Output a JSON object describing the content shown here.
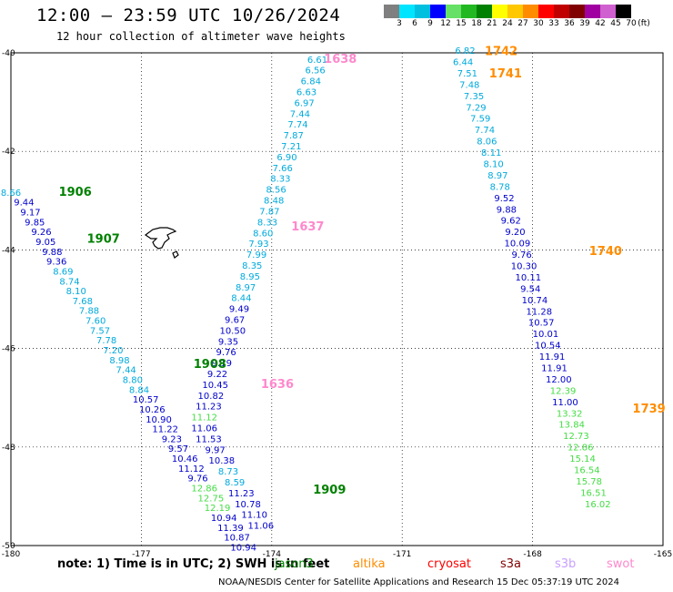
{
  "title": "12:00 – 23:59 UTC 10/26/2024",
  "subtitle": "12 hour collection of altimeter wave heights",
  "legend": {
    "unit": "(ft)",
    "bins": [
      {
        "label": "3",
        "color": "#7f7f7f"
      },
      {
        "label": "6",
        "color": "#00e5ff"
      },
      {
        "label": "9",
        "color": "#00bfdf"
      },
      {
        "label": "12",
        "color": "#0000ff"
      },
      {
        "label": "15",
        "color": "#66e066"
      },
      {
        "label": "18",
        "color": "#22b822"
      },
      {
        "label": "21",
        "color": "#008000"
      },
      {
        "label": "24",
        "color": "#ffff00"
      },
      {
        "label": "27",
        "color": "#ffc800"
      },
      {
        "label": "30",
        "color": "#ff8c00"
      },
      {
        "label": "33",
        "color": "#ff0000"
      },
      {
        "label": "36",
        "color": "#c00000"
      },
      {
        "label": "39",
        "color": "#800000"
      },
      {
        "label": "42",
        "color": "#a000a0"
      },
      {
        "label": "45",
        "color": "#d060d0"
      },
      {
        "label": "70",
        "color": "#000000"
      }
    ]
  },
  "map": {
    "lon_range": [
      -180,
      -165
    ],
    "lat_range": [
      -50,
      -40
    ],
    "x_ticks": [
      "-180",
      "-177",
      "-174",
      "-171",
      "-168",
      "-165"
    ],
    "y_ticks": [
      "-40",
      "-42",
      "-44",
      "-46",
      "-48",
      "-50"
    ],
    "grid": "dotted",
    "value_colors": {
      "c": "#00aadd",
      "b": "#0000cc",
      "g": "#44dd44",
      "t": "#00bbcc"
    },
    "time_labels": [
      {
        "text": "1906",
        "lon": -178.9,
        "lat": -42.9,
        "color": "#008000"
      },
      {
        "text": "1907",
        "lon": -178.25,
        "lat": -43.85,
        "color": "#008000"
      },
      {
        "text": "1908",
        "lon": -175.8,
        "lat": -46.4,
        "color": "#008000"
      },
      {
        "text": "1909",
        "lon": -173.05,
        "lat": -48.95,
        "color": "#008000"
      },
      {
        "text": "1638",
        "lon": -172.8,
        "lat": -40.2,
        "color": "#ff88cc"
      },
      {
        "text": "1637",
        "lon": -173.55,
        "lat": -43.6,
        "color": "#ff88cc"
      },
      {
        "text": "1636",
        "lon": -174.25,
        "lat": -46.8,
        "color": "#ff88cc"
      },
      {
        "text": "1742",
        "lon": -169.1,
        "lat": -40.05,
        "color": "#ff8c00"
      },
      {
        "text": "1741",
        "lon": -169.0,
        "lat": -40.5,
        "color": "#ff8c00"
      },
      {
        "text": "1740",
        "lon": -166.7,
        "lat": -44.1,
        "color": "#ff8c00"
      },
      {
        "text": "1739",
        "lon": -165.7,
        "lat": -47.3,
        "color": "#ff8c00"
      }
    ],
    "tracks": [
      {
        "name": "track-1900",
        "points": [
          [
            -180.0,
            -42.9,
            "8.66",
            "c"
          ],
          [
            -179.7,
            -43.1,
            "9.44",
            "b"
          ],
          [
            -179.55,
            -43.3,
            "9.17",
            "b"
          ],
          [
            -179.45,
            -43.5,
            "9.85",
            "b"
          ],
          [
            -179.3,
            -43.7,
            "9.26",
            "b"
          ],
          [
            -179.2,
            -43.9,
            "9.05",
            "b"
          ],
          [
            -179.05,
            -44.1,
            "9.88",
            "b"
          ],
          [
            -178.95,
            -44.3,
            "9.36",
            "b"
          ],
          [
            -178.8,
            -44.5,
            "8.69",
            "c"
          ],
          [
            -178.65,
            -44.7,
            "8.74",
            "c"
          ],
          [
            -178.5,
            -44.9,
            "8.10",
            "c"
          ],
          [
            -178.35,
            -45.1,
            "7.68",
            "c"
          ],
          [
            -178.2,
            -45.3,
            "7.88",
            "c"
          ],
          [
            -178.05,
            -45.5,
            "7.60",
            "c"
          ],
          [
            -177.95,
            -45.7,
            "7.57",
            "c"
          ],
          [
            -177.8,
            -45.9,
            "7.78",
            "c"
          ],
          [
            -177.65,
            -46.1,
            "7.20",
            "c"
          ],
          [
            -177.5,
            -46.3,
            "8.98",
            "c"
          ],
          [
            -177.35,
            -46.5,
            "7.44",
            "c"
          ],
          [
            -177.2,
            -46.7,
            "8.80",
            "c"
          ],
          [
            -177.05,
            -46.9,
            "8.84",
            "c"
          ],
          [
            -176.9,
            -47.1,
            "10.57",
            "b"
          ],
          [
            -176.75,
            -47.3,
            "10.26",
            "b"
          ],
          [
            -176.6,
            -47.5,
            "10.90",
            "b"
          ],
          [
            -176.45,
            -47.7,
            "11.22",
            "b"
          ],
          [
            -176.3,
            -47.9,
            "9.23",
            "b"
          ],
          [
            -176.15,
            -48.1,
            "9.57",
            "b"
          ],
          [
            -176.0,
            -48.3,
            "10.46",
            "b"
          ],
          [
            -175.85,
            -48.5,
            "11.12",
            "b"
          ],
          [
            -175.7,
            -48.7,
            "9.76",
            "b"
          ],
          [
            -175.55,
            -48.9,
            "12.86",
            "g"
          ],
          [
            -175.4,
            -49.1,
            "12.75",
            "g"
          ],
          [
            -175.25,
            -49.3,
            "12.19",
            "g"
          ],
          [
            -175.1,
            -49.5,
            "10.94",
            "b"
          ],
          [
            -174.95,
            -49.7,
            "11.39",
            "b"
          ],
          [
            -174.8,
            -49.9,
            "10.87",
            "b"
          ],
          [
            -174.65,
            -50.1,
            "10.94",
            "b"
          ]
        ]
      },
      {
        "name": "track-1630",
        "points": [
          [
            -172.95,
            -40.2,
            "6.61",
            "c"
          ],
          [
            -173.0,
            -40.42,
            "6.56",
            "c"
          ],
          [
            -173.1,
            -40.64,
            "6.84",
            "c"
          ],
          [
            -173.2,
            -40.86,
            "6.63",
            "c"
          ],
          [
            -173.25,
            -41.08,
            "6.97",
            "c"
          ],
          [
            -173.35,
            -41.3,
            "7.44",
            "c"
          ],
          [
            -173.4,
            -41.52,
            "7.74",
            "c"
          ],
          [
            -173.5,
            -41.74,
            "7.87",
            "c"
          ],
          [
            -173.55,
            -41.96,
            "7.21",
            "c"
          ],
          [
            -173.65,
            -42.18,
            "6.90",
            "c"
          ],
          [
            -173.75,
            -42.4,
            "7.66",
            "c"
          ],
          [
            -173.8,
            -42.62,
            "8.33",
            "c"
          ],
          [
            -173.9,
            -42.84,
            "8.56",
            "c"
          ],
          [
            -173.95,
            -43.06,
            "8.48",
            "c"
          ],
          [
            -174.05,
            -43.28,
            "7.87",
            "c"
          ],
          [
            -174.1,
            -43.5,
            "8.33",
            "c"
          ],
          [
            -174.2,
            -43.72,
            "8.60",
            "c"
          ],
          [
            -174.3,
            -43.94,
            "7.93",
            "c"
          ],
          [
            -174.35,
            -44.16,
            "7.99",
            "c"
          ],
          [
            -174.45,
            -44.38,
            "8.35",
            "c"
          ],
          [
            -174.5,
            -44.6,
            "8.95",
            "c"
          ],
          [
            -174.6,
            -44.82,
            "8.97",
            "c"
          ],
          [
            -174.7,
            -45.04,
            "8.44",
            "c"
          ],
          [
            -174.75,
            -45.26,
            "9.49",
            "b"
          ],
          [
            -174.85,
            -45.48,
            "9.67",
            "b"
          ],
          [
            -174.9,
            -45.7,
            "10.50",
            "b"
          ],
          [
            -175.0,
            -45.92,
            "9.35",
            "b"
          ],
          [
            -175.05,
            -46.14,
            "9.76",
            "b"
          ],
          [
            -175.15,
            -46.36,
            "9.19",
            "b"
          ],
          [
            -175.25,
            -46.58,
            "9.22",
            "b"
          ],
          [
            -175.3,
            -46.8,
            "10.45",
            "b"
          ],
          [
            -175.4,
            -47.02,
            "10.82",
            "b"
          ],
          [
            -175.45,
            -47.24,
            "11.23",
            "b"
          ],
          [
            -175.55,
            -47.46,
            "11.12",
            "g"
          ],
          [
            -175.55,
            -47.68,
            "11.06",
            "b"
          ],
          [
            -175.45,
            -47.9,
            "11.53",
            "b"
          ],
          [
            -175.3,
            -48.12,
            "9.97",
            "b"
          ],
          [
            -175.15,
            -48.34,
            "10.38",
            "b"
          ],
          [
            -175.0,
            -48.56,
            "8.73",
            "c"
          ],
          [
            -174.85,
            -48.78,
            "8.59",
            "c"
          ],
          [
            -174.7,
            -49.0,
            "11.23",
            "b"
          ],
          [
            -174.55,
            -49.22,
            "10.78",
            "b"
          ],
          [
            -174.4,
            -49.44,
            "11.10",
            "b"
          ],
          [
            -174.25,
            -49.66,
            "11.06",
            "b"
          ]
        ]
      },
      {
        "name": "track-1740",
        "points": [
          [
            -169.55,
            -40.02,
            "6.82",
            "c"
          ],
          [
            -169.6,
            -40.25,
            "6.44",
            "c"
          ],
          [
            -169.5,
            -40.48,
            "7.51",
            "c"
          ],
          [
            -169.45,
            -40.71,
            "7.48",
            "c"
          ],
          [
            -169.35,
            -40.94,
            "7.35",
            "c"
          ],
          [
            -169.3,
            -41.17,
            "7.29",
            "c"
          ],
          [
            -169.2,
            -41.4,
            "7.59",
            "c"
          ],
          [
            -169.1,
            -41.63,
            "7.74",
            "c"
          ],
          [
            -169.05,
            -41.86,
            "8.06",
            "c"
          ],
          [
            -168.95,
            -42.09,
            "8.11",
            "c"
          ],
          [
            -168.9,
            -42.32,
            "8.10",
            "c"
          ],
          [
            -168.8,
            -42.55,
            "8.97",
            "c"
          ],
          [
            -168.75,
            -42.78,
            "8.78",
            "c"
          ],
          [
            -168.65,
            -43.01,
            "9.52",
            "b"
          ],
          [
            -168.6,
            -43.24,
            "9.88",
            "b"
          ],
          [
            -168.5,
            -43.47,
            "9.62",
            "b"
          ],
          [
            -168.4,
            -43.7,
            "9.20",
            "b"
          ],
          [
            -168.35,
            -43.93,
            "10.09",
            "b"
          ],
          [
            -168.25,
            -44.16,
            "9.76",
            "b"
          ],
          [
            -168.2,
            -44.39,
            "10.30",
            "b"
          ],
          [
            -168.1,
            -44.62,
            "10.11",
            "b"
          ],
          [
            -168.05,
            -44.85,
            "9.54",
            "b"
          ],
          [
            -167.95,
            -45.08,
            "10.74",
            "b"
          ],
          [
            -167.85,
            -45.31,
            "11.28",
            "b"
          ],
          [
            -167.8,
            -45.54,
            "10.57",
            "b"
          ],
          [
            -167.7,
            -45.77,
            "10.01",
            "b"
          ],
          [
            -167.65,
            -46.0,
            "10.54",
            "b"
          ],
          [
            -167.55,
            -46.23,
            "11.91",
            "b"
          ],
          [
            -167.5,
            -46.46,
            "11.91",
            "b"
          ],
          [
            -167.4,
            -46.69,
            "12.00",
            "b"
          ],
          [
            -167.3,
            -46.92,
            "12.39",
            "g"
          ],
          [
            -167.25,
            -47.15,
            "11.00",
            "b"
          ],
          [
            -167.15,
            -47.38,
            "13.32",
            "g"
          ],
          [
            -167.1,
            -47.61,
            "13.84",
            "g"
          ],
          [
            -167.0,
            -47.84,
            "12.73",
            "g"
          ],
          [
            -166.9,
            -48.07,
            "12.86",
            "g"
          ],
          [
            -166.85,
            -48.3,
            "15.14",
            "g"
          ],
          [
            -166.75,
            -48.53,
            "16.54",
            "g"
          ],
          [
            -166.7,
            -48.76,
            "15.78",
            "g"
          ],
          [
            -166.6,
            -48.99,
            "16.51",
            "g"
          ],
          [
            -166.5,
            -49.22,
            "16.02",
            "g"
          ]
        ]
      }
    ]
  },
  "note": "note: 1) Time is in UTC; 2) SWH is in feet",
  "satellites": [
    {
      "name": "jason3",
      "color": "#008000"
    },
    {
      "name": "altika",
      "color": "#ff8c00"
    },
    {
      "name": "cryosat",
      "color": "#ff0000"
    },
    {
      "name": "s3a",
      "color": "#800000"
    },
    {
      "name": "s3b",
      "color": "#c8a0ff"
    },
    {
      "name": "swot",
      "color": "#ff88cc"
    }
  ],
  "footer": "NOAA/NESDIS Center for Satellite Applications and Research  15 Dec 05:37:19 UTC 2024"
}
